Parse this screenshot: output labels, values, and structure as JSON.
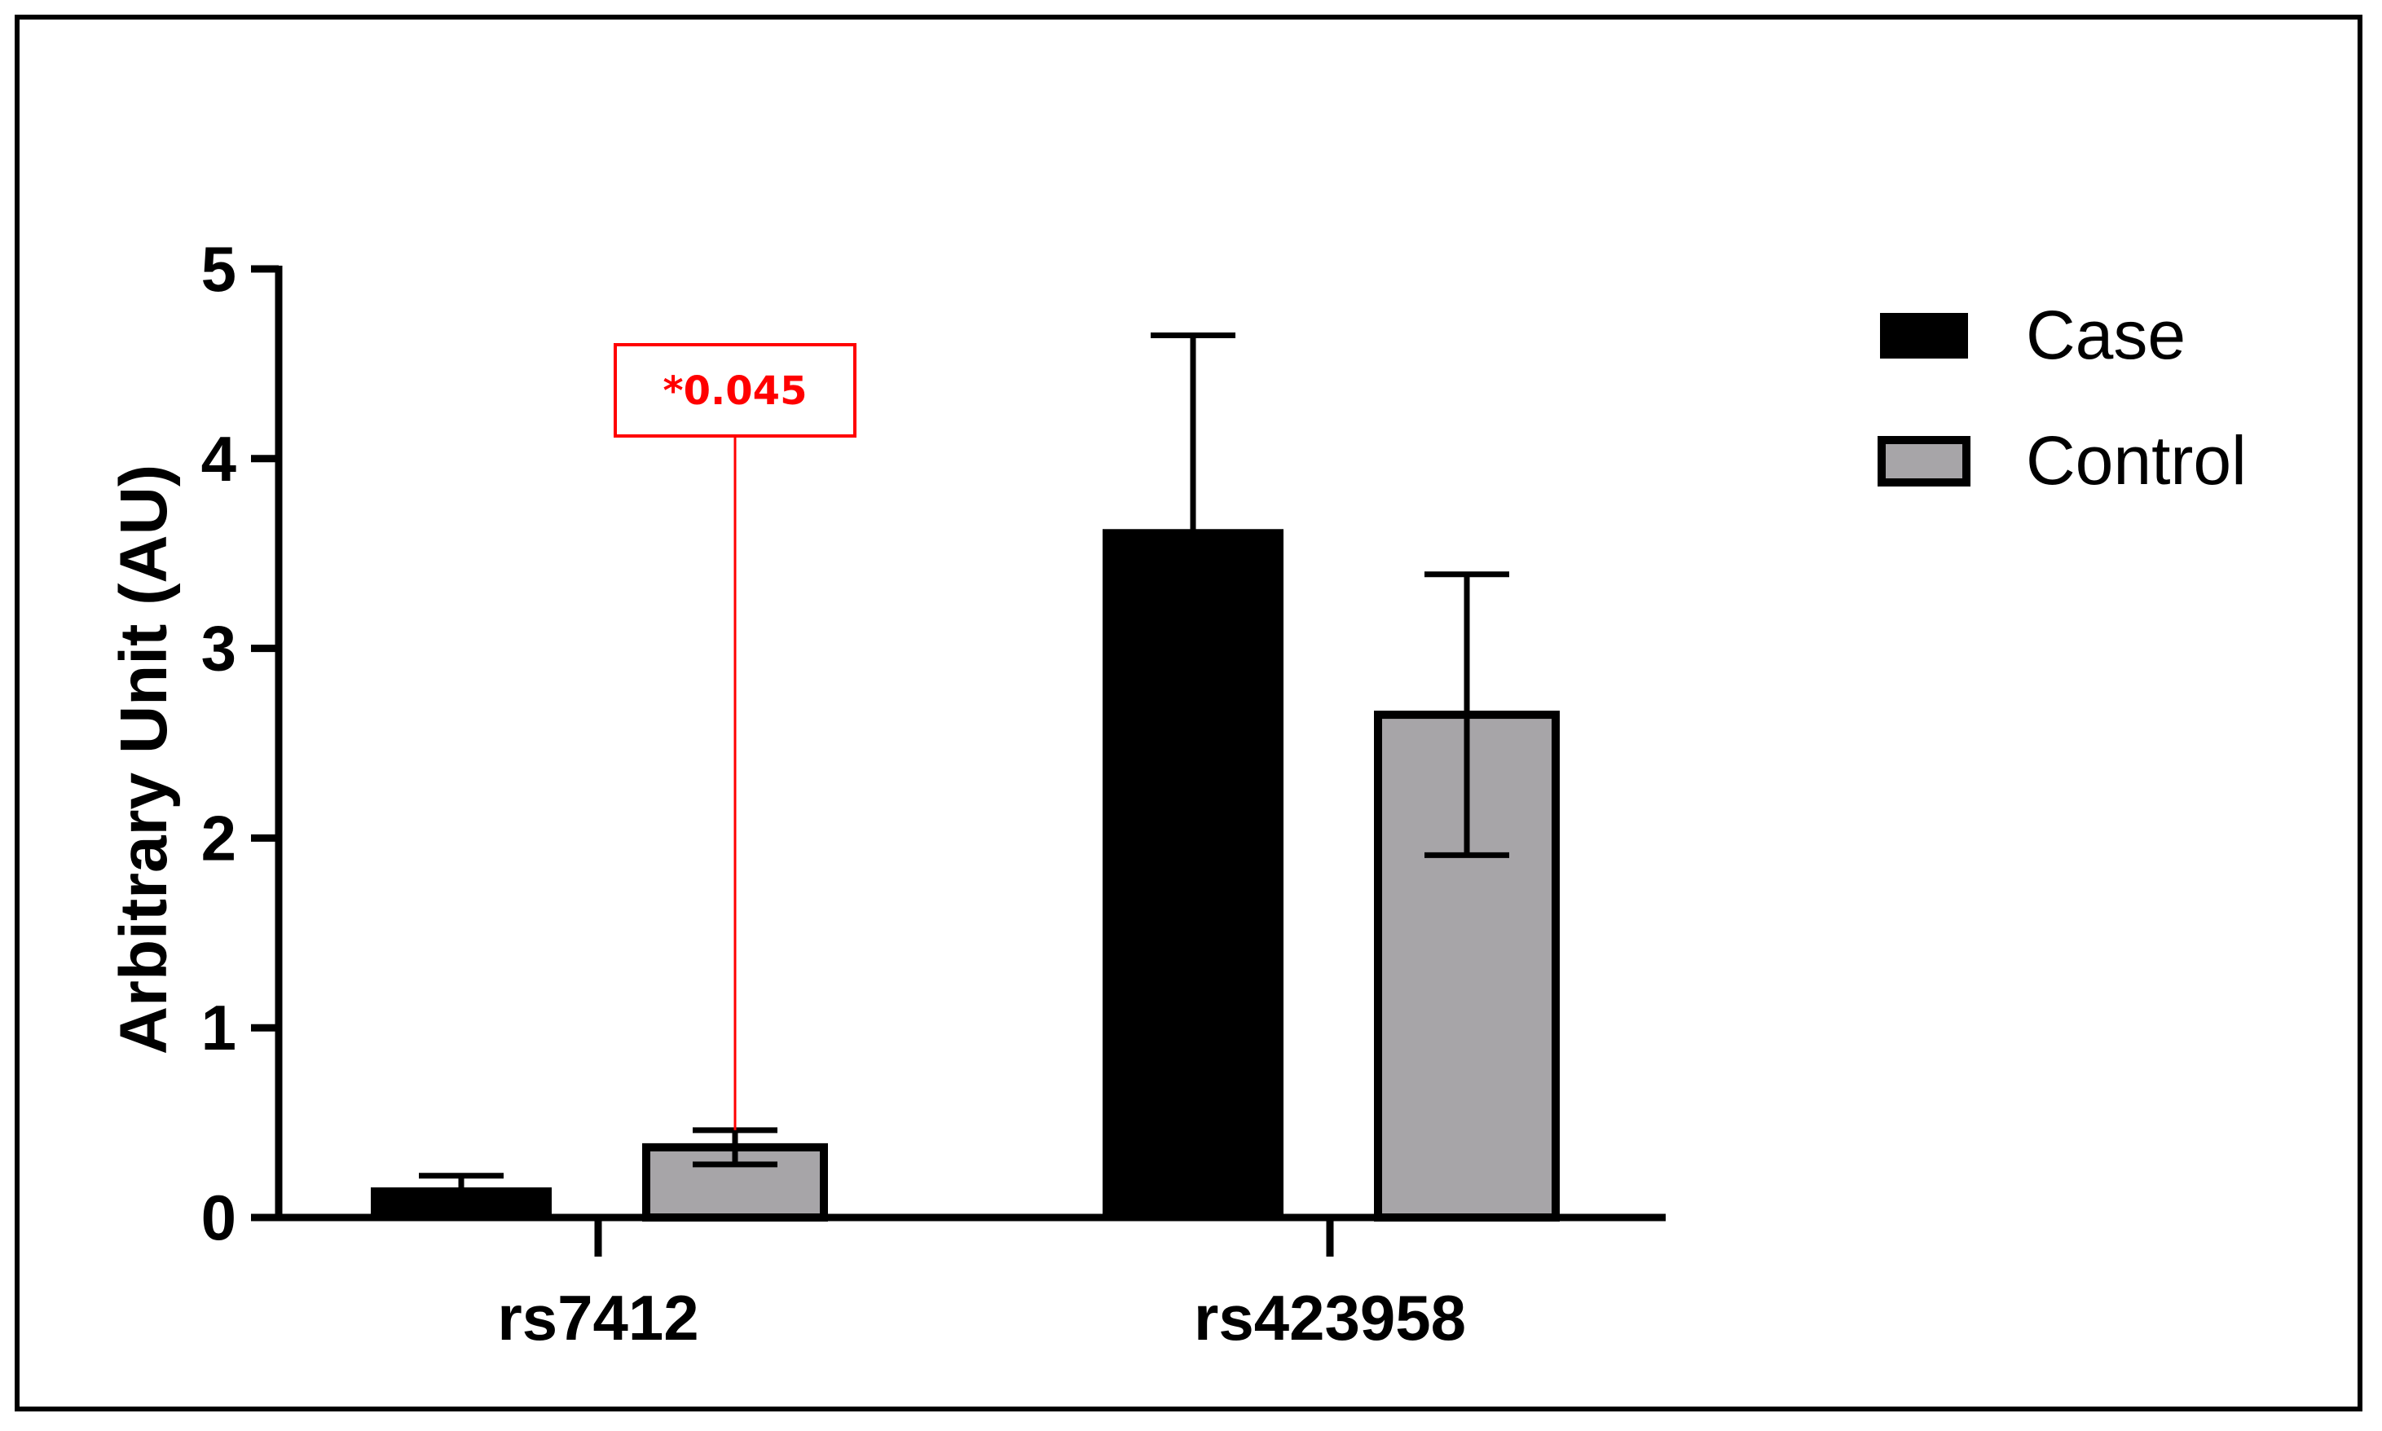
{
  "chart_data": {
    "type": "bar",
    "categories": [
      "rs7412",
      "rs423958"
    ],
    "series": [
      {
        "name": "Case",
        "values": [
          0.15,
          3.62
        ],
        "error": [
          0.07,
          1.03
        ],
        "color": "#000000"
      },
      {
        "name": "Control",
        "values": [
          0.37,
          2.65
        ],
        "error": [
          0.09,
          0.74
        ],
        "color": "#a7a5a8"
      }
    ],
    "title": "",
    "xlabel": "",
    "ylabel": "Arbitrary Unit (AU)",
    "ylim": [
      0,
      5
    ],
    "yticks": [
      0,
      1,
      2,
      3,
      4,
      5
    ],
    "grid": false,
    "legend": "top-right",
    "annotations": [
      {
        "text": "*0.045",
        "category": "rs7412",
        "series": "Control",
        "color": "#ff0000"
      }
    ]
  }
}
